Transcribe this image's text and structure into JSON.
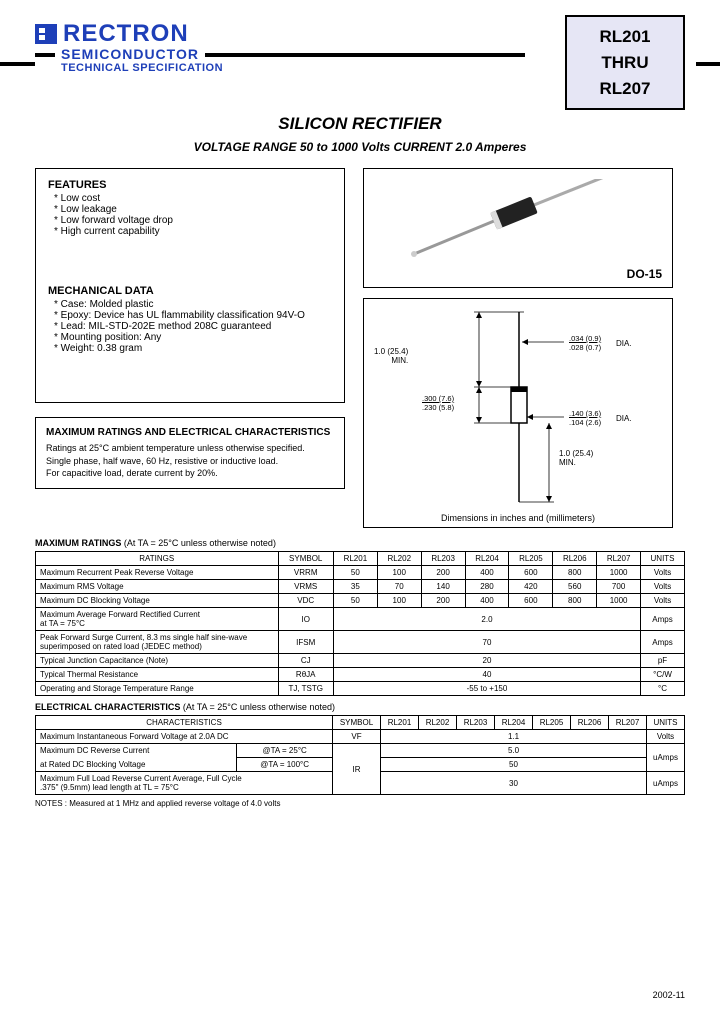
{
  "brand": {
    "name": "RECTRON",
    "sub": "SEMICONDUCTOR",
    "spec": "TECHNICAL SPECIFICATION"
  },
  "partbox": {
    "p1": "RL201",
    "thru": "THRU",
    "p2": "RL207"
  },
  "title": "SILICON RECTIFIER",
  "subtitle": "VOLTAGE RANGE  50 to 1000 Volts   CURRENT 2.0 Amperes",
  "features": {
    "head": "FEATURES",
    "items": [
      "Low cost",
      "Low leakage",
      "Low forward voltage drop",
      "High current capability"
    ]
  },
  "mech": {
    "head": "MECHANICAL DATA",
    "items": [
      "Case: Molded plastic",
      "Epoxy: Device has UL flammability classification 94V-O",
      "Lead: MIL-STD-202E method 208C guaranteed",
      "Mounting position: Any",
      "Weight: 0.38 gram"
    ]
  },
  "pkg_label": "DO-15",
  "dim_caption": "Dimensions in inches and (millimeters)",
  "dim_labels": {
    "top_min": "1.0 (25.4)",
    "top_min2": "MIN.",
    "dia1a": ".034 (0.9)",
    "dia1b": ".028 (0.7)",
    "dia1": "DIA.",
    "len_a": ".300 (7.6)",
    "len_b": ".230 (5.8)",
    "dia2a": ".140 (3.6)",
    "dia2b": ".104 (2.6)",
    "dia2": "DIA.",
    "bot_min": "1.0 (25.4)",
    "bot_min2": "MIN."
  },
  "maxbox": {
    "head": "MAXIMUM RATINGS AND ELECTRICAL CHARACTERISTICS",
    "l1": "Ratings at 25°C ambient temperature unless otherwise specified.",
    "l2": "Single phase, half wave, 60 Hz, resistive or inductive load.",
    "l3": "For capacitive load, derate current by 20%."
  },
  "max_label": "MAXIMUM RATINGS",
  "max_label_note": "(At TA = 25°C unless otherwise noted)",
  "parts": [
    "RL201",
    "RL202",
    "RL203",
    "RL204",
    "RL205",
    "RL206",
    "RL207"
  ],
  "max_table": {
    "headers": [
      "RATINGS",
      "SYMBOL",
      "RL201",
      "RL202",
      "RL203",
      "RL204",
      "RL205",
      "RL206",
      "RL207",
      "UNITS"
    ],
    "rows": [
      {
        "lbl": "Maximum Recurrent Peak Reverse Voltage",
        "sym": "VRRM",
        "vals": [
          "50",
          "100",
          "200",
          "400",
          "600",
          "800",
          "1000"
        ],
        "unit": "Volts"
      },
      {
        "lbl": "Maximum RMS Voltage",
        "sym": "VRMS",
        "vals": [
          "35",
          "70",
          "140",
          "280",
          "420",
          "560",
          "700"
        ],
        "unit": "Volts"
      },
      {
        "lbl": "Maximum DC Blocking Voltage",
        "sym": "VDC",
        "vals": [
          "50",
          "100",
          "200",
          "400",
          "600",
          "800",
          "1000"
        ],
        "unit": "Volts"
      },
      {
        "lbl": "Maximum Average Forward Rectified Current\nat TA = 75°C",
        "sym": "IO",
        "span": "2.0",
        "unit": "Amps"
      },
      {
        "lbl": "Peak Forward Surge Current, 8.3 ms single half sine-wave\nsuperimposed on rated load (JEDEC method)",
        "sym": "IFSM",
        "span": "70",
        "unit": "Amps"
      },
      {
        "lbl": "Typical Junction Capacitance (Note)",
        "sym": "CJ",
        "span": "20",
        "unit": "pF"
      },
      {
        "lbl": "Typical Thermal Resistance",
        "sym": "RθJA",
        "span": "40",
        "unit": "°C/W"
      },
      {
        "lbl": "Operating and Storage Temperature Range",
        "sym": "TJ, TSTG",
        "span": "-55 to +150",
        "unit": "°C"
      }
    ]
  },
  "elec_label": "ELECTRICAL CHARACTERISTICS",
  "elec_label_note": "(At TA = 25°C unless otherwise noted)",
  "elec_table": {
    "headers": [
      "CHARACTERISTICS",
      "SYMBOL",
      "RL201",
      "RL202",
      "RL203",
      "RL204",
      "RL205",
      "RL206",
      "RL207",
      "UNITS"
    ],
    "r1": {
      "lbl": "Maximum Instantaneous Forward Voltage at 2.0A DC",
      "sym": "VF",
      "span": "1.1",
      "unit": "Volts"
    },
    "r2a": {
      "lbl": "Maximum DC Reverse Current",
      "cond": "@TA = 25°C",
      "sym": "IR",
      "span": "5.0",
      "unit": "uAmps"
    },
    "r2b": {
      "lbl": "at Rated DC Blocking Voltage",
      "cond": "@TA = 100°C",
      "span": "50"
    },
    "r3": {
      "lbl": "Maximum Full Load Reverse Current Average, Full Cycle\n.375\" (9.5mm) lead length at TL = 75°C",
      "span": "30",
      "unit": "uAmps"
    }
  },
  "notes": "NOTES :  Measured at 1 MHz and applied reverse voltage of 4.0 volts",
  "rev": "2002-11",
  "colors": {
    "brand": "#1e3fb8",
    "partbox_bg": "#e6e6f5",
    "border": "#000000"
  }
}
